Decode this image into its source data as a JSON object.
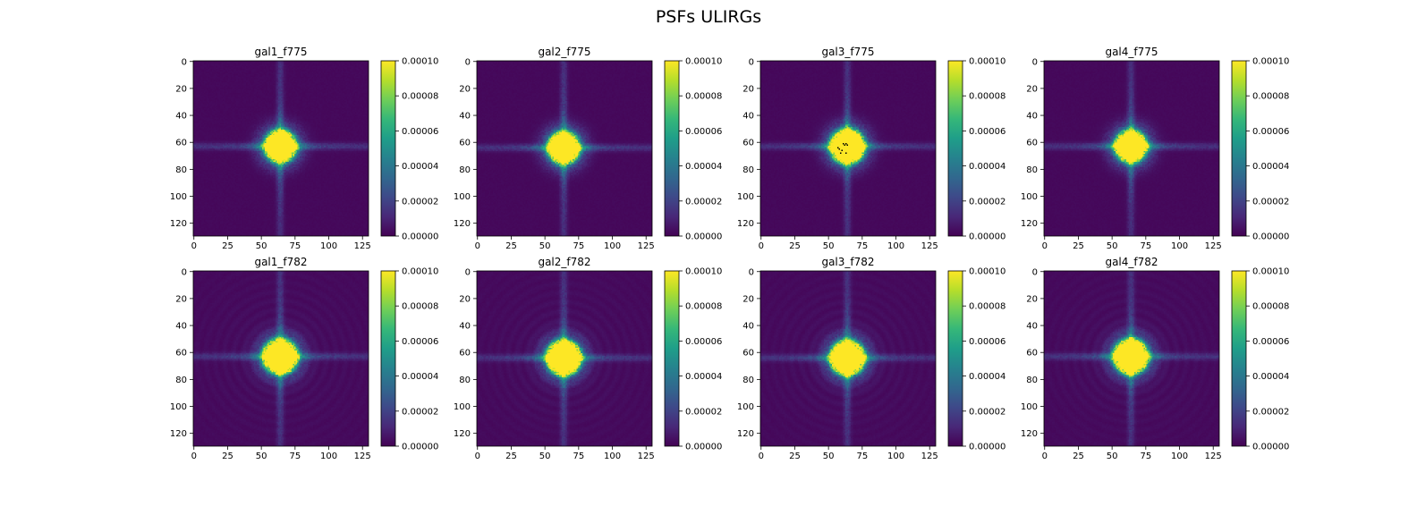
{
  "figure_title": "PSFs ULIRGs",
  "chart_data": {
    "type": "heatmap",
    "title": "PSFs ULIRGs",
    "layout": "2 rows x 4 columns",
    "colormap": "viridis",
    "colormap_stops": [
      "#440154",
      "#482878",
      "#3e4989",
      "#31688e",
      "#26828e",
      "#1f9e89",
      "#35b779",
      "#6ece58",
      "#b5de2b",
      "#fde725"
    ],
    "image_size": [
      130,
      130
    ],
    "x_ticks": [
      0,
      25,
      50,
      75,
      100,
      125
    ],
    "y_ticks": [
      0,
      20,
      40,
      60,
      80,
      100,
      120
    ],
    "x_tick_labels": [
      "0",
      "25",
      "50",
      "75",
      "100",
      "125"
    ],
    "y_tick_labels": [
      "0",
      "20",
      "40",
      "60",
      "80",
      "100",
      "120"
    ],
    "colorbar_range": [
      0.0,
      0.0001
    ],
    "colorbar_ticks": [
      0.0,
      2e-05,
      4e-05,
      6e-05,
      8e-05,
      0.0001
    ],
    "colorbar_tick_labels": [
      "0.00000",
      "0.00002",
      "0.00004",
      "0.00006",
      "0.00008",
      "0.00010"
    ],
    "panels": [
      {
        "title": "gal1_f775",
        "center": [
          64,
          63
        ],
        "core_radius": 10,
        "rings": false,
        "dead_pixels": false
      },
      {
        "title": "gal2_f775",
        "center": [
          64,
          64
        ],
        "core_radius": 10,
        "rings": false,
        "dead_pixels": false
      },
      {
        "title": "gal3_f775",
        "center": [
          64,
          63
        ],
        "core_radius": 11,
        "rings": false,
        "dead_pixels": true
      },
      {
        "title": "gal4_f775",
        "center": [
          64,
          63
        ],
        "core_radius": 10,
        "rings": false,
        "dead_pixels": false
      },
      {
        "title": "gal1_f782",
        "center": [
          64,
          63
        ],
        "core_radius": 11,
        "rings": true,
        "dead_pixels": false
      },
      {
        "title": "gal2_f782",
        "center": [
          64,
          64
        ],
        "core_radius": 11,
        "rings": true,
        "dead_pixels": false
      },
      {
        "title": "gal3_f782",
        "center": [
          64,
          64
        ],
        "core_radius": 11,
        "rings": true,
        "dead_pixels": false
      },
      {
        "title": "gal4_f782",
        "center": [
          64,
          63
        ],
        "core_radius": 11,
        "rings": true,
        "dead_pixels": false
      }
    ]
  }
}
